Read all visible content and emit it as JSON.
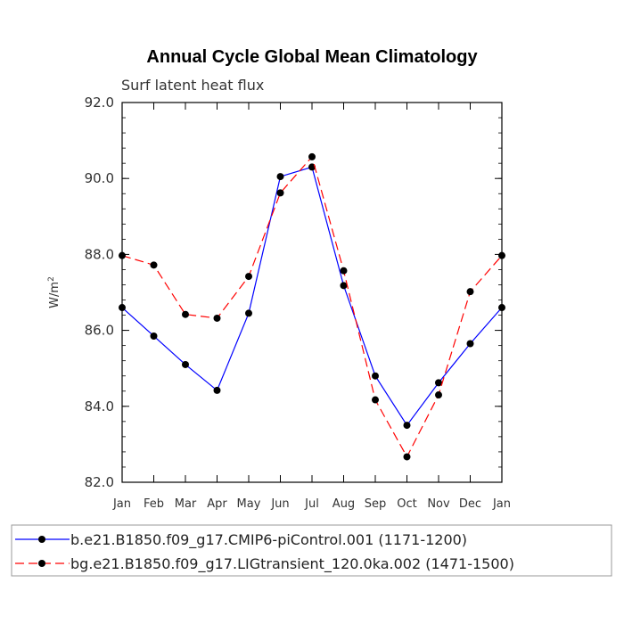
{
  "chart_data": {
    "type": "line",
    "title": "Annual Cycle Global Mean Climatology",
    "subtitle": "Surf latent heat flux",
    "xlabel": "",
    "ylabel": "W/m",
    "ylabel_sup": "2",
    "categories": [
      "Jan",
      "Feb",
      "Mar",
      "Apr",
      "May",
      "Jun",
      "Jul",
      "Aug",
      "Sep",
      "Oct",
      "Nov",
      "Dec",
      "Jan"
    ],
    "ylim": [
      82.0,
      92.0
    ],
    "yticks": [
      "82.0",
      "84.0",
      "86.0",
      "88.0",
      "90.0",
      "92.0"
    ],
    "grid": false,
    "legend_position": "bottom",
    "series": [
      {
        "name": "b.e21.B1850.f09_g17.CMIP6-piControl.001 (1171-1200)",
        "color": "#0000ff",
        "dash": "solid",
        "values": [
          86.6,
          85.85,
          85.1,
          84.42,
          86.45,
          90.05,
          90.3,
          87.18,
          84.8,
          83.5,
          84.62,
          85.65,
          86.6
        ]
      },
      {
        "name": "bg.e21.B1850.f09_g17.LIGtransient_120.0ka.002 (1471-1500)",
        "color": "#ff0000",
        "dash": "dashed",
        "values": [
          87.97,
          87.72,
          86.42,
          86.32,
          87.42,
          89.62,
          90.57,
          87.57,
          84.17,
          82.67,
          84.3,
          87.02,
          87.97
        ]
      }
    ]
  }
}
